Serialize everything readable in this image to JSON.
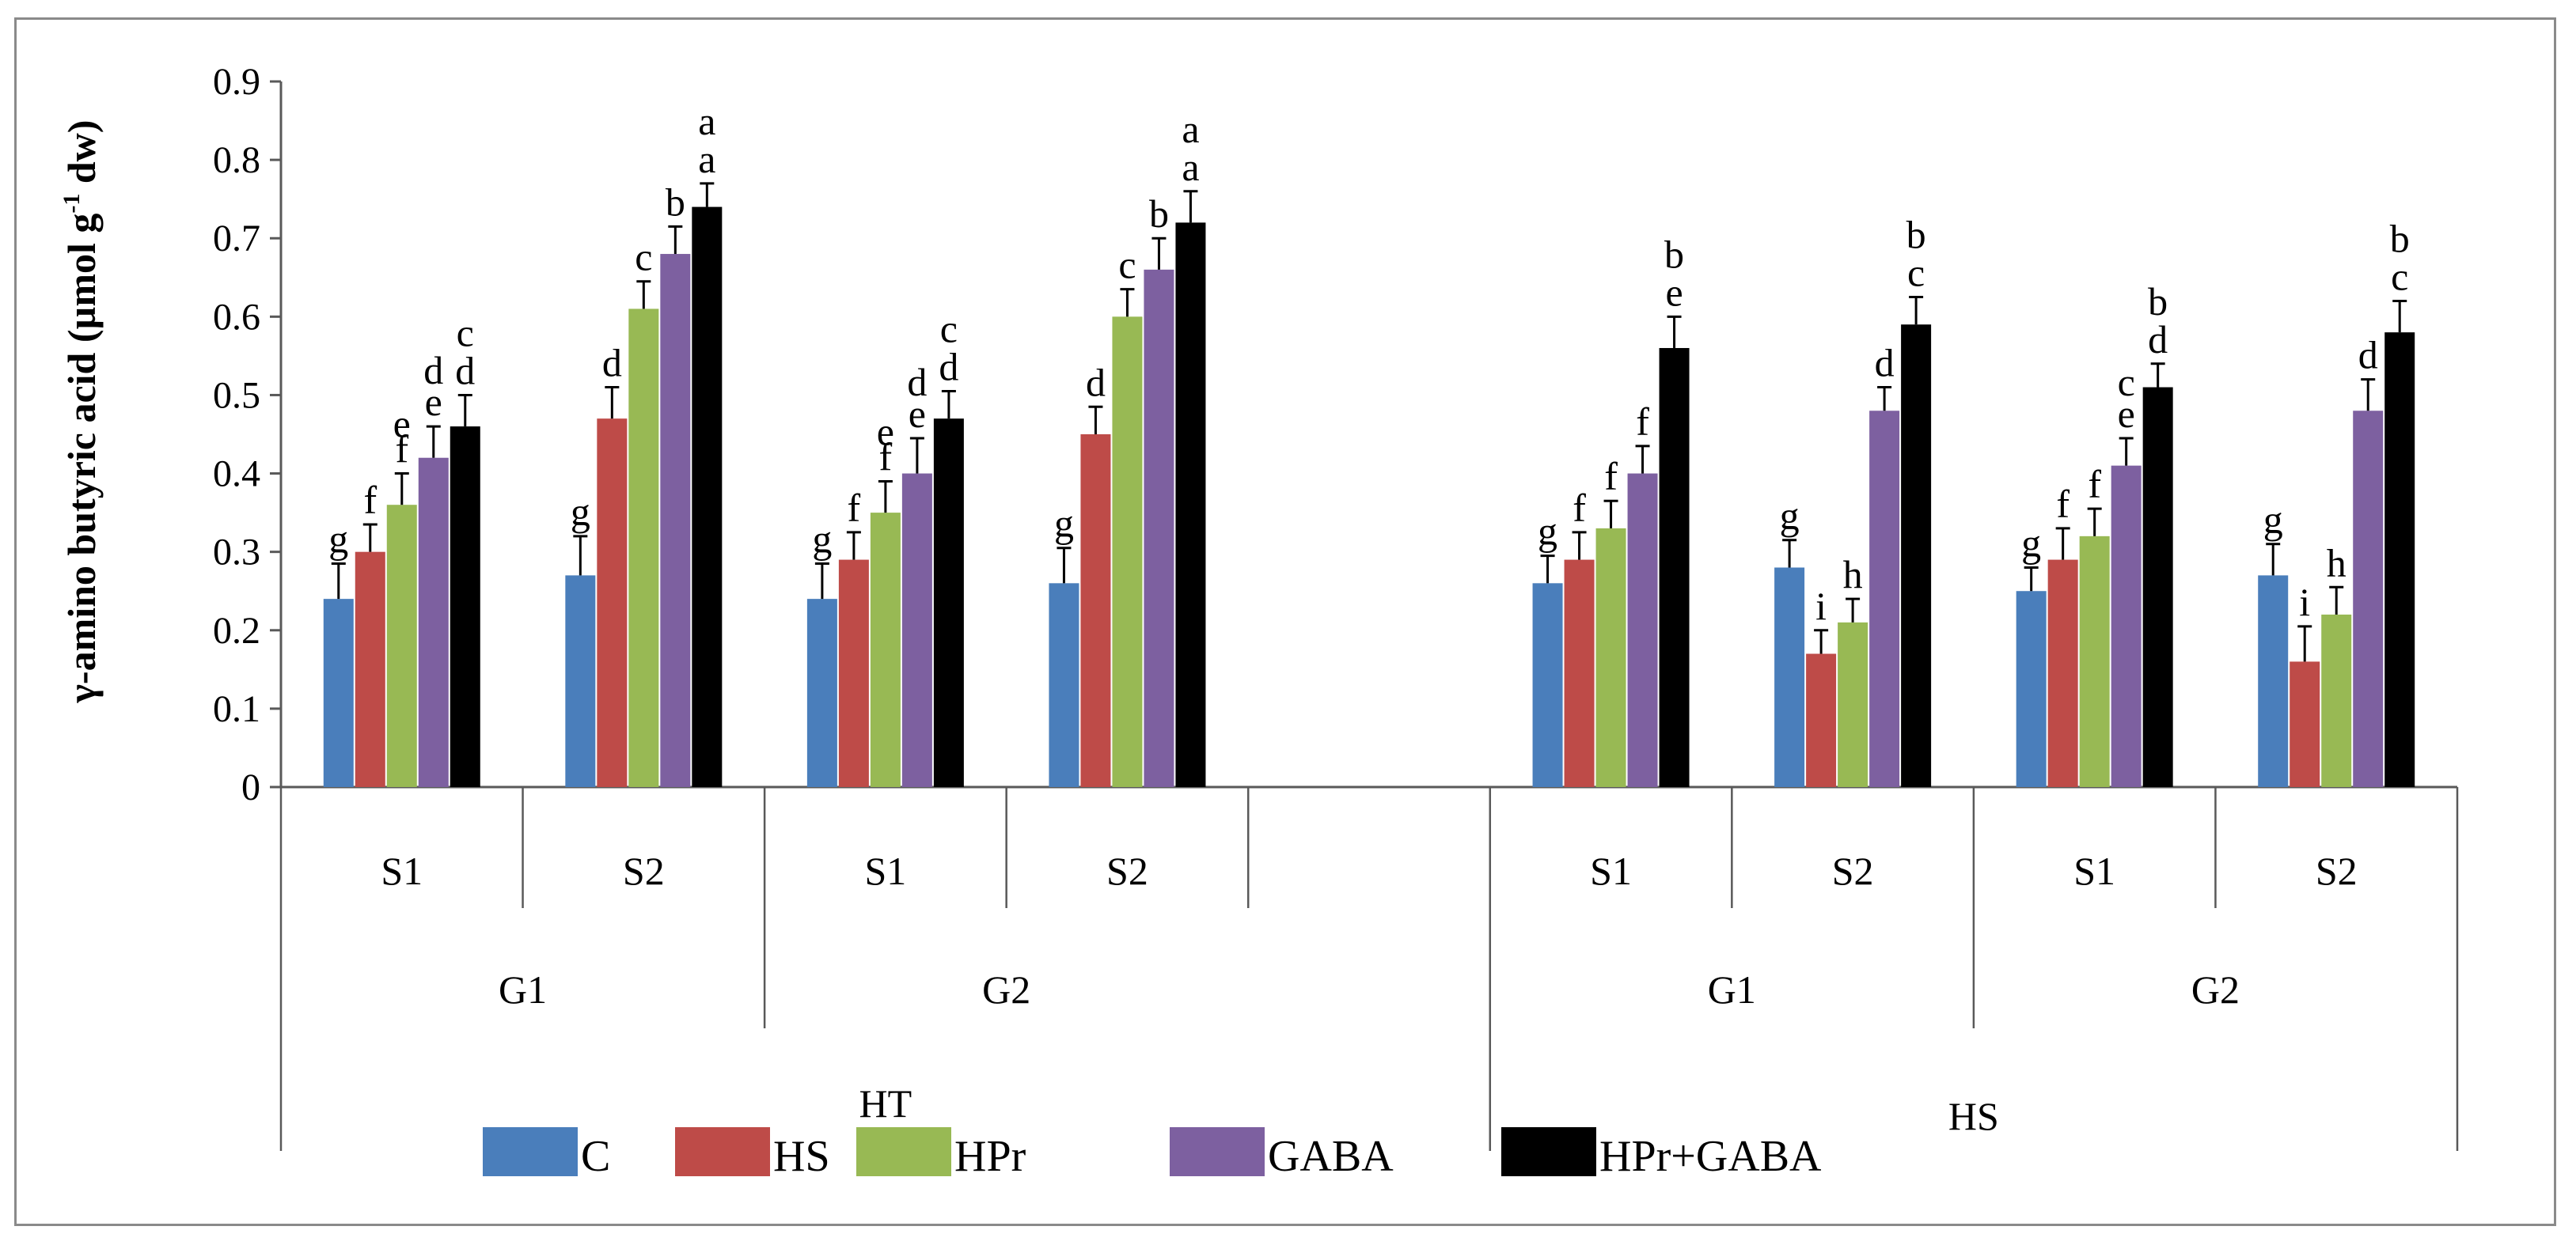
{
  "chart_data": {
    "type": "bar",
    "ylabel": "γ-amino butyric acid  (µmol g⁻¹ dw)",
    "ylabel_parts": {
      "main": "γ-amino butyric acid  (µmol g",
      "sup": "-1",
      "tail": " dw)"
    },
    "ylim": [
      0,
      0.9
    ],
    "yticks": [
      "0",
      "0.1",
      "0.2",
      "0.3",
      "0.4",
      "0.5",
      "0.6",
      "0.7",
      "0.8",
      "0.9"
    ],
    "ytick_values": [
      0,
      0.1,
      0.2,
      0.3,
      0.4,
      0.5,
      0.6,
      0.7,
      0.8,
      0.9
    ],
    "grid": false,
    "legend_position": "bottom",
    "series": [
      {
        "name": "C",
        "color": "#4a7ebb"
      },
      {
        "name": "HS",
        "color": "#be4b48"
      },
      {
        "name": "HPr",
        "color": "#98b954"
      },
      {
        "name": "GABA",
        "color": "#7d60a0"
      },
      {
        "name": "HPr+GABA",
        "color": "#000000"
      }
    ],
    "categories": [
      {
        "stage": "S1",
        "genotype": "G1",
        "treatment": "HT",
        "values": [
          0.24,
          0.3,
          0.36,
          0.42,
          0.46
        ],
        "errors": [
          0.045,
          0.035,
          0.04,
          0.04,
          0.04
        ],
        "letters": [
          "g",
          "f",
          "f",
          "e",
          "d"
        ],
        "extra_letters": [
          "e",
          "d",
          "c"
        ]
      },
      {
        "stage": "S2",
        "genotype": "G1",
        "treatment": "HT",
        "values": [
          0.27,
          0.47,
          0.61,
          0.68,
          0.74
        ],
        "errors": [
          0.05,
          0.04,
          0.035,
          0.035,
          0.03
        ],
        "letters": [
          "g",
          "d",
          "c",
          "b",
          "a"
        ],
        "extra_letters": [
          "a"
        ]
      },
      {
        "stage": "S1",
        "genotype": "G2",
        "treatment": "HT",
        "values": [
          0.24,
          0.29,
          0.35,
          0.4,
          0.47
        ],
        "errors": [
          0.045,
          0.035,
          0.04,
          0.045,
          0.035
        ],
        "letters": [
          "g",
          "f",
          "f",
          "e",
          "d"
        ],
        "extra_letters": [
          "e",
          "d",
          "c"
        ]
      },
      {
        "stage": "S2",
        "genotype": "G2",
        "treatment": "HT",
        "values": [
          0.26,
          0.45,
          0.6,
          0.66,
          0.72
        ],
        "errors": [
          0.045,
          0.035,
          0.035,
          0.04,
          0.04
        ],
        "letters": [
          "g",
          "d",
          "c",
          "b",
          "a"
        ],
        "extra_letters": [
          "a"
        ]
      },
      {
        "stage": "",
        "genotype": "",
        "treatment": "",
        "values": [],
        "errors": [],
        "letters": [],
        "extra_letters": []
      },
      {
        "stage": "S1",
        "genotype": "G1",
        "treatment": "HS",
        "values": [
          0.26,
          0.29,
          0.33,
          0.4,
          0.56
        ],
        "errors": [
          0.035,
          0.035,
          0.035,
          0.035,
          0.04
        ],
        "letters": [
          "g",
          "f",
          "f",
          "f",
          "e"
        ],
        "extra_letters": [
          "b"
        ]
      },
      {
        "stage": "S2",
        "genotype": "G1",
        "treatment": "HS",
        "values": [
          0.28,
          0.17,
          0.21,
          0.48,
          0.59
        ],
        "errors": [
          0.035,
          0.03,
          0.03,
          0.03,
          0.035
        ],
        "letters": [
          "g",
          "i",
          "h",
          "d",
          "c"
        ],
        "extra_letters": [
          "b"
        ]
      },
      {
        "stage": "S1",
        "genotype": "G2",
        "treatment": "HS",
        "values": [
          0.25,
          0.29,
          0.32,
          0.41,
          0.51
        ],
        "errors": [
          0.03,
          0.04,
          0.035,
          0.035,
          0.03
        ],
        "letters": [
          "g",
          "f",
          "f",
          "e",
          "d"
        ],
        "extra_letters": [
          "c",
          "b"
        ]
      },
      {
        "stage": "S2",
        "genotype": "G2",
        "treatment": "HS",
        "values": [
          0.27,
          0.16,
          0.22,
          0.48,
          0.58
        ],
        "errors": [
          0.04,
          0.045,
          0.035,
          0.04,
          0.04
        ],
        "letters": [
          "g",
          "i",
          "h",
          "d",
          "c"
        ],
        "extra_letters": [
          "b"
        ]
      }
    ],
    "genotype_groups": [
      {
        "label": "G1",
        "treatment": "HT"
      },
      {
        "label": "G2",
        "treatment": "HT"
      },
      {
        "label": "G1",
        "treatment": "HS"
      },
      {
        "label": "G2",
        "treatment": "HS"
      }
    ],
    "treatment_groups": [
      "HT",
      "HS"
    ]
  }
}
